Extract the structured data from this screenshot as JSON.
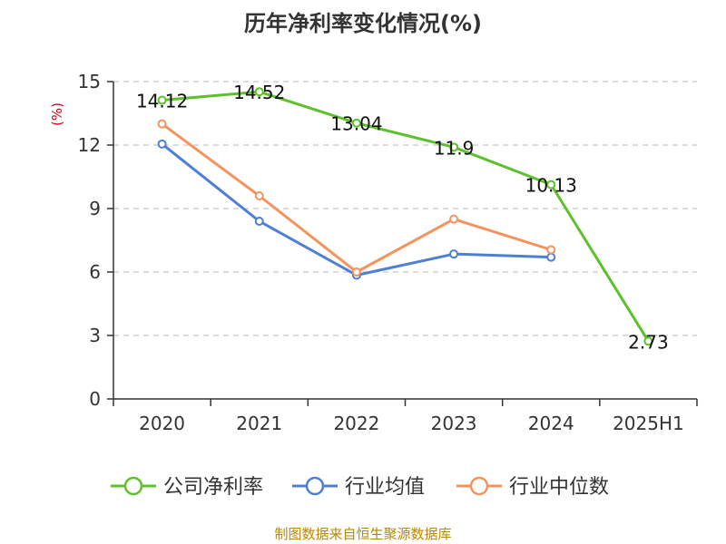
{
  "chart_data": {
    "type": "line",
    "title": "历年净利率变化情况(%)",
    "unit_label": "(%)",
    "categories": [
      "2020",
      "2021",
      "2022",
      "2023",
      "2024",
      "2025H1"
    ],
    "ylim": [
      0,
      15
    ],
    "yticks": [
      0,
      3,
      6,
      9,
      12,
      15
    ],
    "grid": true,
    "legend_position": "bottom",
    "series": [
      {
        "name": "公司净利率",
        "color": "#5cc12a",
        "values": [
          14.12,
          14.52,
          13.04,
          11.9,
          10.13,
          2.73
        ],
        "show_labels": true
      },
      {
        "name": "行业均值",
        "color": "#4e7fd6",
        "values": [
          12.05,
          8.4,
          5.85,
          6.85,
          6.7,
          null
        ],
        "show_labels": false
      },
      {
        "name": "行业中位数",
        "color": "#f4935d",
        "values": [
          13.0,
          9.6,
          6.0,
          8.5,
          7.05,
          null
        ],
        "show_labels": false
      }
    ],
    "source": "制图数据来自恒生聚源数据库"
  }
}
